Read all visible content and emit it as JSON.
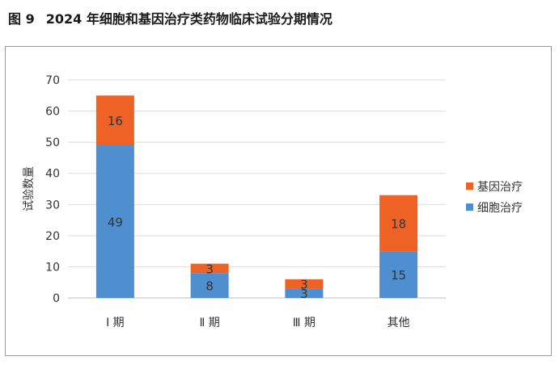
{
  "figure": {
    "number": "图 9",
    "title": "2024 年细胞和基因治疗类药物临床试验分期情况"
  },
  "chart_data": {
    "type": "bar",
    "stacked": true,
    "categories": [
      "Ⅰ 期",
      "Ⅱ 期",
      "Ⅲ 期",
      "其他"
    ],
    "series": [
      {
        "name": "细胞治疗",
        "color": "#4f8fd0",
        "values": [
          49,
          8,
          3,
          15
        ]
      },
      {
        "name": "基因治疗",
        "color": "#ee6325",
        "values": [
          16,
          3,
          3,
          18
        ]
      }
    ],
    "ylabel": "试验数量",
    "ylim": [
      0,
      70
    ],
    "yticks": [
      0,
      10,
      20,
      30,
      40,
      50,
      60,
      70
    ],
    "grid": true,
    "legend": "right"
  }
}
